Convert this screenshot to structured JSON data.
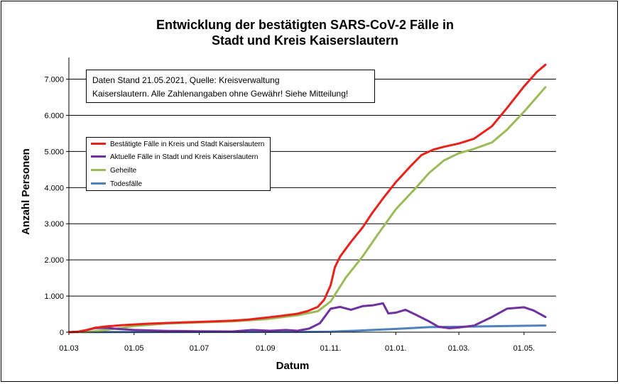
{
  "title_line1": "Entwicklung der bestätigten SARS-CoV-2 Fälle in",
  "title_line2": "Stadt und Kreis Kaiserslautern",
  "note_line1": "Daten Stand 21.05.2021, Quelle: Kreisverwaltung",
  "note_line2": "Kaiserslautern. Alle Zahlenangaben ohne Gewähr! Siehe Mitteilung!",
  "chart_data": {
    "type": "line",
    "title": "Entwicklung der bestätigten SARS-CoV-2 Fälle in Stadt und Kreis Kaiserslautern",
    "xlabel": "Datum",
    "ylabel": "Anzahl Personen",
    "x_ticks": [
      "01.03",
      "01.05",
      "01.07",
      "01.09",
      "01.11.",
      "01.01.",
      "01.03.",
      "01.05."
    ],
    "y_ticks": [
      "0",
      "1.000",
      "2.000",
      "3.000",
      "4.000",
      "5.000",
      "6.000",
      "7.000"
    ],
    "xlim": [
      "2020-03-01",
      "2021-05-31"
    ],
    "ylim": [
      0,
      7600
    ],
    "grid": "horizontal",
    "legend_position": "upper-left",
    "series": [
      {
        "name": "Bestätigte Fälle in Kreis und Stadt Kaiserslautern",
        "color": "#e8211b",
        "points": [
          [
            "2020-03-01",
            0
          ],
          [
            "2020-03-10",
            15
          ],
          [
            "2020-03-18",
            60
          ],
          [
            "2020-03-25",
            120
          ],
          [
            "2020-04-05",
            160
          ],
          [
            "2020-04-20",
            195
          ],
          [
            "2020-05-01",
            215
          ],
          [
            "2020-05-15",
            235
          ],
          [
            "2020-06-01",
            255
          ],
          [
            "2020-06-15",
            270
          ],
          [
            "2020-07-01",
            285
          ],
          [
            "2020-07-15",
            300
          ],
          [
            "2020-08-01",
            320
          ],
          [
            "2020-08-15",
            345
          ],
          [
            "2020-09-01",
            400
          ],
          [
            "2020-09-15",
            450
          ],
          [
            "2020-10-01",
            510
          ],
          [
            "2020-10-10",
            580
          ],
          [
            "2020-10-20",
            700
          ],
          [
            "2020-10-26",
            900
          ],
          [
            "2020-11-01",
            1300
          ],
          [
            "2020-11-05",
            1800
          ],
          [
            "2020-11-10",
            2100
          ],
          [
            "2020-11-20",
            2500
          ],
          [
            "2020-12-01",
            2900
          ],
          [
            "2020-12-10",
            3300
          ],
          [
            "2020-12-20",
            3700
          ],
          [
            "2021-01-01",
            4150
          ],
          [
            "2021-01-15",
            4600
          ],
          [
            "2021-01-25",
            4900
          ],
          [
            "2021-02-05",
            5050
          ],
          [
            "2021-02-15",
            5130
          ],
          [
            "2021-03-01",
            5220
          ],
          [
            "2021-03-15",
            5350
          ],
          [
            "2021-04-01",
            5700
          ],
          [
            "2021-04-15",
            6200
          ],
          [
            "2021-05-01",
            6800
          ],
          [
            "2021-05-13",
            7200
          ],
          [
            "2021-05-21",
            7400
          ]
        ]
      },
      {
        "name": "Aktuelle Fälle in Stadt und Kreis Kaiserslautern",
        "color": "#7030a0",
        "points": [
          [
            "2020-03-01",
            0
          ],
          [
            "2020-03-10",
            15
          ],
          [
            "2020-03-18",
            60
          ],
          [
            "2020-03-25",
            110
          ],
          [
            "2020-04-05",
            120
          ],
          [
            "2020-04-15",
            90
          ],
          [
            "2020-05-01",
            60
          ],
          [
            "2020-06-01",
            35
          ],
          [
            "2020-07-01",
            25
          ],
          [
            "2020-08-01",
            20
          ],
          [
            "2020-08-20",
            60
          ],
          [
            "2020-09-05",
            40
          ],
          [
            "2020-09-20",
            60
          ],
          [
            "2020-10-01",
            40
          ],
          [
            "2020-10-12",
            100
          ],
          [
            "2020-10-22",
            250
          ],
          [
            "2020-11-01",
            650
          ],
          [
            "2020-11-10",
            700
          ],
          [
            "2020-11-20",
            620
          ],
          [
            "2020-12-01",
            720
          ],
          [
            "2020-12-10",
            740
          ],
          [
            "2020-12-20",
            800
          ],
          [
            "2020-12-25",
            520
          ],
          [
            "2021-01-01",
            540
          ],
          [
            "2021-01-10",
            620
          ],
          [
            "2021-01-20",
            480
          ],
          [
            "2021-02-01",
            300
          ],
          [
            "2021-02-10",
            150
          ],
          [
            "2021-02-20",
            110
          ],
          [
            "2021-03-01",
            130
          ],
          [
            "2021-03-15",
            180
          ],
          [
            "2021-04-01",
            420
          ],
          [
            "2021-04-15",
            650
          ],
          [
            "2021-05-01",
            690
          ],
          [
            "2021-05-10",
            600
          ],
          [
            "2021-05-21",
            420
          ]
        ]
      },
      {
        "name": "Geheilte",
        "color": "#9bbb59",
        "points": [
          [
            "2020-03-01",
            0
          ],
          [
            "2020-03-18",
            5
          ],
          [
            "2020-04-01",
            50
          ],
          [
            "2020-04-20",
            120
          ],
          [
            "2020-05-01",
            170
          ],
          [
            "2020-06-01",
            240
          ],
          [
            "2020-07-01",
            270
          ],
          [
            "2020-08-01",
            300
          ],
          [
            "2020-09-01",
            360
          ],
          [
            "2020-10-01",
            470
          ],
          [
            "2020-10-20",
            580
          ],
          [
            "2020-11-01",
            850
          ],
          [
            "2020-11-15",
            1500
          ],
          [
            "2020-12-01",
            2100
          ],
          [
            "2020-12-15",
            2700
          ],
          [
            "2021-01-01",
            3400
          ],
          [
            "2021-01-20",
            4000
          ],
          [
            "2021-02-01",
            4400
          ],
          [
            "2021-02-15",
            4750
          ],
          [
            "2021-03-01",
            4950
          ],
          [
            "2021-03-15",
            5070
          ],
          [
            "2021-04-01",
            5250
          ],
          [
            "2021-04-15",
            5600
          ],
          [
            "2021-05-01",
            6100
          ],
          [
            "2021-05-21",
            6780
          ]
        ]
      },
      {
        "name": "Todesfälle",
        "color": "#4f81bd",
        "points": [
          [
            "2020-03-01",
            0
          ],
          [
            "2020-06-01",
            5
          ],
          [
            "2020-10-01",
            8
          ],
          [
            "2020-11-01",
            15
          ],
          [
            "2020-12-01",
            50
          ],
          [
            "2021-01-01",
            90
          ],
          [
            "2021-01-20",
            120
          ],
          [
            "2021-02-01",
            140
          ],
          [
            "2021-03-01",
            150
          ],
          [
            "2021-04-01",
            165
          ],
          [
            "2021-05-21",
            185
          ]
        ]
      }
    ]
  }
}
